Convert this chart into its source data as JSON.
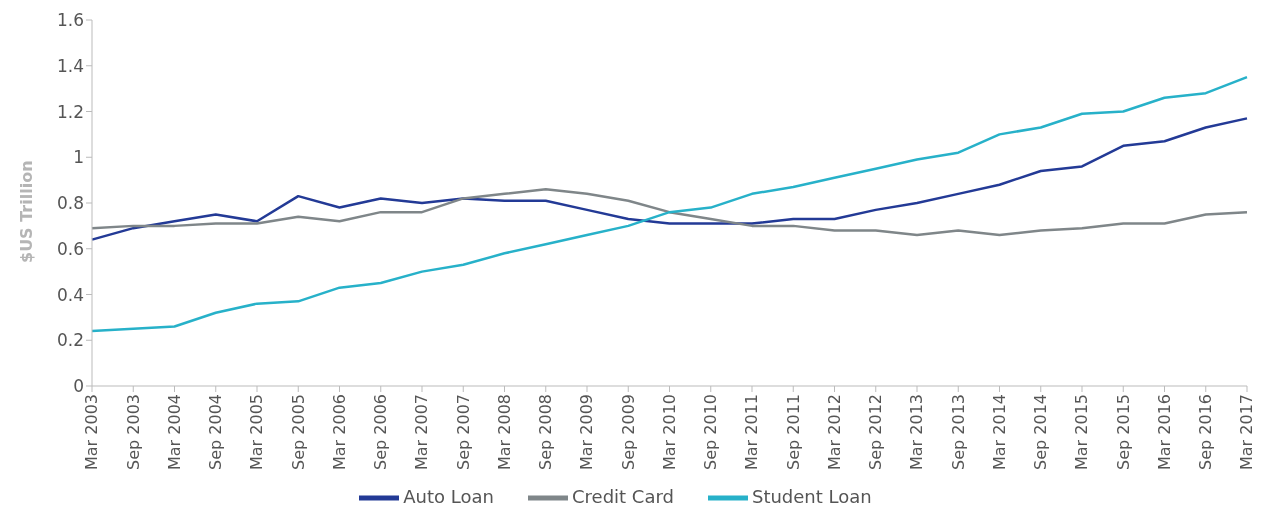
{
  "chart_data": {
    "type": "line",
    "ylabel": "$US Trillion",
    "categories": [
      "Mar 2003",
      "Sep 2003",
      "Mar 2004",
      "Sep 2004",
      "Mar 2005",
      "Sep 2005",
      "Mar 2006",
      "Sep 2006",
      "Mar 2007",
      "Sep 2007",
      "Mar 2008",
      "Sep 2008",
      "Mar 2009",
      "Sep 2009",
      "Mar 2010",
      "Sep 2010",
      "Mar 2011",
      "Sep 2011",
      "Mar 2012",
      "Sep 2012",
      "Mar 2013",
      "Sep 2013",
      "Mar 2014",
      "Sep 2014",
      "Mar 2015",
      "Sep 2015",
      "Mar 2016",
      "Sep 2016",
      "Mar 2017"
    ],
    "series": [
      {
        "name": "Auto Loan",
        "color": "#233a96",
        "values": [
          0.64,
          0.69,
          0.72,
          0.75,
          0.72,
          0.83,
          0.78,
          0.82,
          0.8,
          0.82,
          0.81,
          0.81,
          0.77,
          0.73,
          0.71,
          0.71,
          0.71,
          0.73,
          0.73,
          0.77,
          0.8,
          0.84,
          0.88,
          0.94,
          0.96,
          1.05,
          1.07,
          1.13,
          1.17
        ]
      },
      {
        "name": "Credit Card",
        "color": "#7f8689",
        "values": [
          0.69,
          0.7,
          0.7,
          0.71,
          0.71,
          0.74,
          0.72,
          0.76,
          0.76,
          0.82,
          0.84,
          0.86,
          0.84,
          0.81,
          0.76,
          0.73,
          0.7,
          0.7,
          0.68,
          0.68,
          0.66,
          0.68,
          0.66,
          0.68,
          0.69,
          0.71,
          0.71,
          0.75,
          0.76
        ]
      },
      {
        "name": "Student Loan",
        "color": "#27b1c9",
        "values": [
          0.24,
          0.25,
          0.26,
          0.32,
          0.36,
          0.37,
          0.43,
          0.45,
          0.5,
          0.53,
          0.58,
          0.62,
          0.66,
          0.7,
          0.76,
          0.78,
          0.84,
          0.87,
          0.91,
          0.95,
          0.99,
          1.02,
          1.1,
          1.13,
          1.19,
          1.2,
          1.26,
          1.28,
          1.35
        ]
      }
    ],
    "ylim": [
      0,
      1.6
    ],
    "yticks": [
      0,
      0.2,
      0.4,
      0.6,
      0.8,
      1,
      1.2,
      1.4,
      1.6
    ],
    "grid": false,
    "legend": "bottom",
    "marker": "none",
    "line_style": "solid"
  }
}
